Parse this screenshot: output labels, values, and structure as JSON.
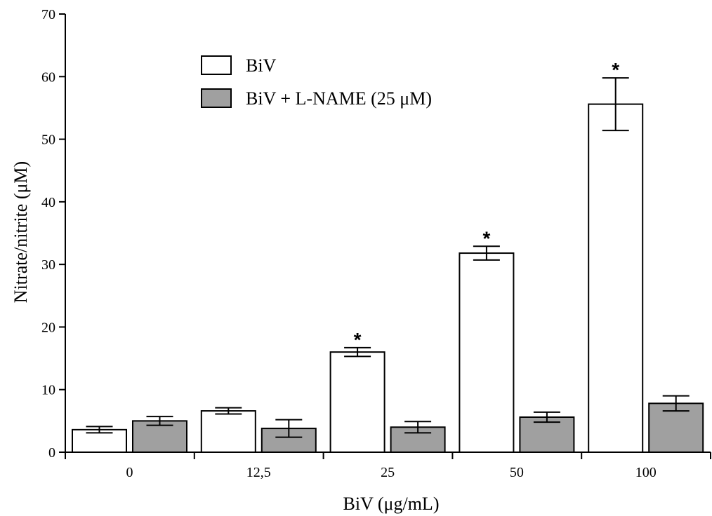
{
  "chart_data": {
    "type": "bar",
    "xlabel": "BiV (μg/mL)",
    "ylabel": "Nitrate/nitrite (μM)",
    "ylim": [
      0,
      70
    ],
    "yticks": [
      "0",
      "10",
      "20",
      "30",
      "40",
      "50",
      "60",
      "70"
    ],
    "categories": [
      "0",
      "12,5",
      "25",
      "50",
      "100"
    ],
    "legend_position": "top-left",
    "series": [
      {
        "name": "BiV",
        "color": "#ffffff",
        "values": [
          3.6,
          6.6,
          16.0,
          31.8,
          55.6
        ],
        "errors": [
          0.5,
          0.5,
          0.7,
          1.1,
          4.2
        ],
        "significance": [
          "",
          "",
          "*",
          "*",
          "*"
        ]
      },
      {
        "name": "BiV + L-NAME (25 μM)",
        "color": "#a0a0a0",
        "values": [
          5.0,
          3.8,
          4.0,
          5.6,
          7.8
        ],
        "errors": [
          0.7,
          1.4,
          0.9,
          0.8,
          1.2
        ],
        "significance": [
          "",
          "",
          "",
          "",
          ""
        ]
      }
    ]
  }
}
